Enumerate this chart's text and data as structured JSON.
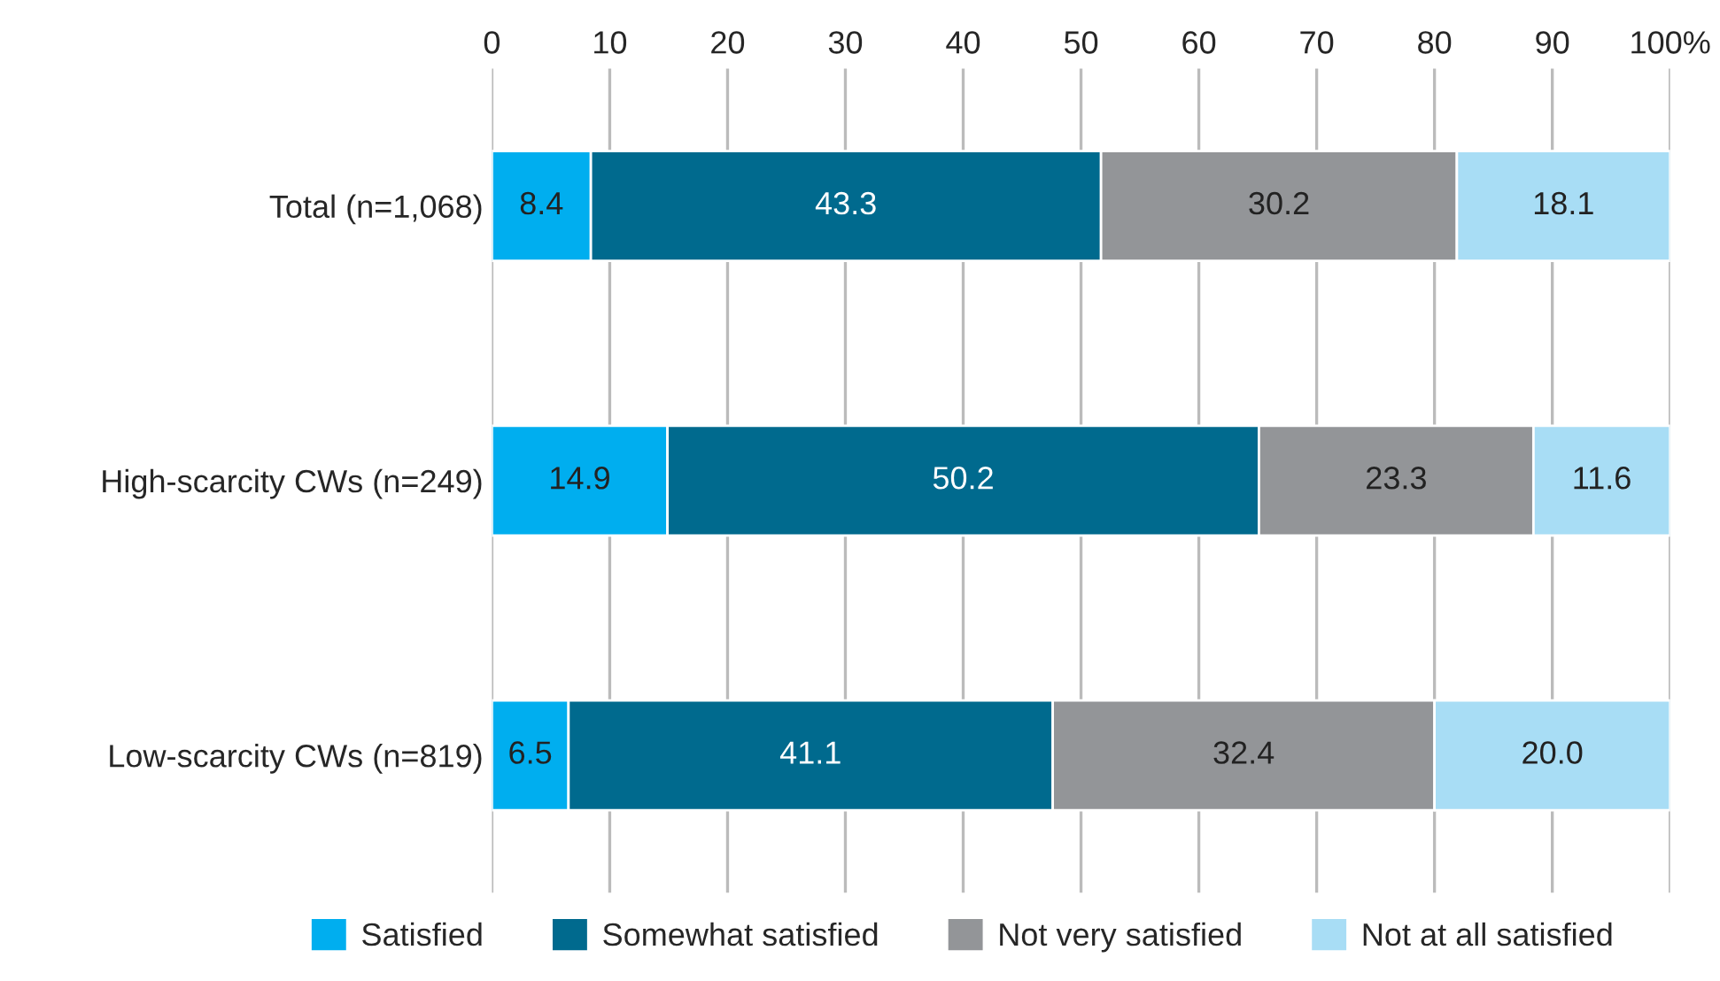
{
  "chart_data": {
    "type": "bar",
    "orientation": "horizontal",
    "stacked": true,
    "categories": [
      "Total (n=1,068)",
      "High-scarcity CWs (n=249)",
      "Low-scarcity CWs (n=819)"
    ],
    "series": [
      {
        "name": "Satisfied",
        "color": "#00aeef",
        "values": [
          8.4,
          14.9,
          6.5
        ],
        "value_labels": [
          "8.4",
          "14.9",
          "6.5"
        ]
      },
      {
        "name": "Somewhat satisfied",
        "color": "#006a8e",
        "values": [
          43.3,
          50.2,
          41.1
        ],
        "value_labels": [
          "43.3",
          "50.2",
          "41.1"
        ]
      },
      {
        "name": "Not very satisfied",
        "color": "#939598",
        "values": [
          30.2,
          23.3,
          32.4
        ],
        "value_labels": [
          "30.2",
          "23.3",
          "32.4"
        ]
      },
      {
        "name": "Not at all satisfied",
        "color": "#a8ddf5",
        "values": [
          18.1,
          11.6,
          20.0
        ],
        "value_labels": [
          "18.1",
          "11.6",
          "20.0"
        ]
      }
    ],
    "xlim": [
      0,
      100
    ],
    "xticks": [
      0,
      10,
      20,
      30,
      40,
      50,
      60,
      70,
      80,
      90,
      {
        "value": 100,
        "label": "100%"
      }
    ],
    "grid": "x",
    "legend": "bottom"
  }
}
